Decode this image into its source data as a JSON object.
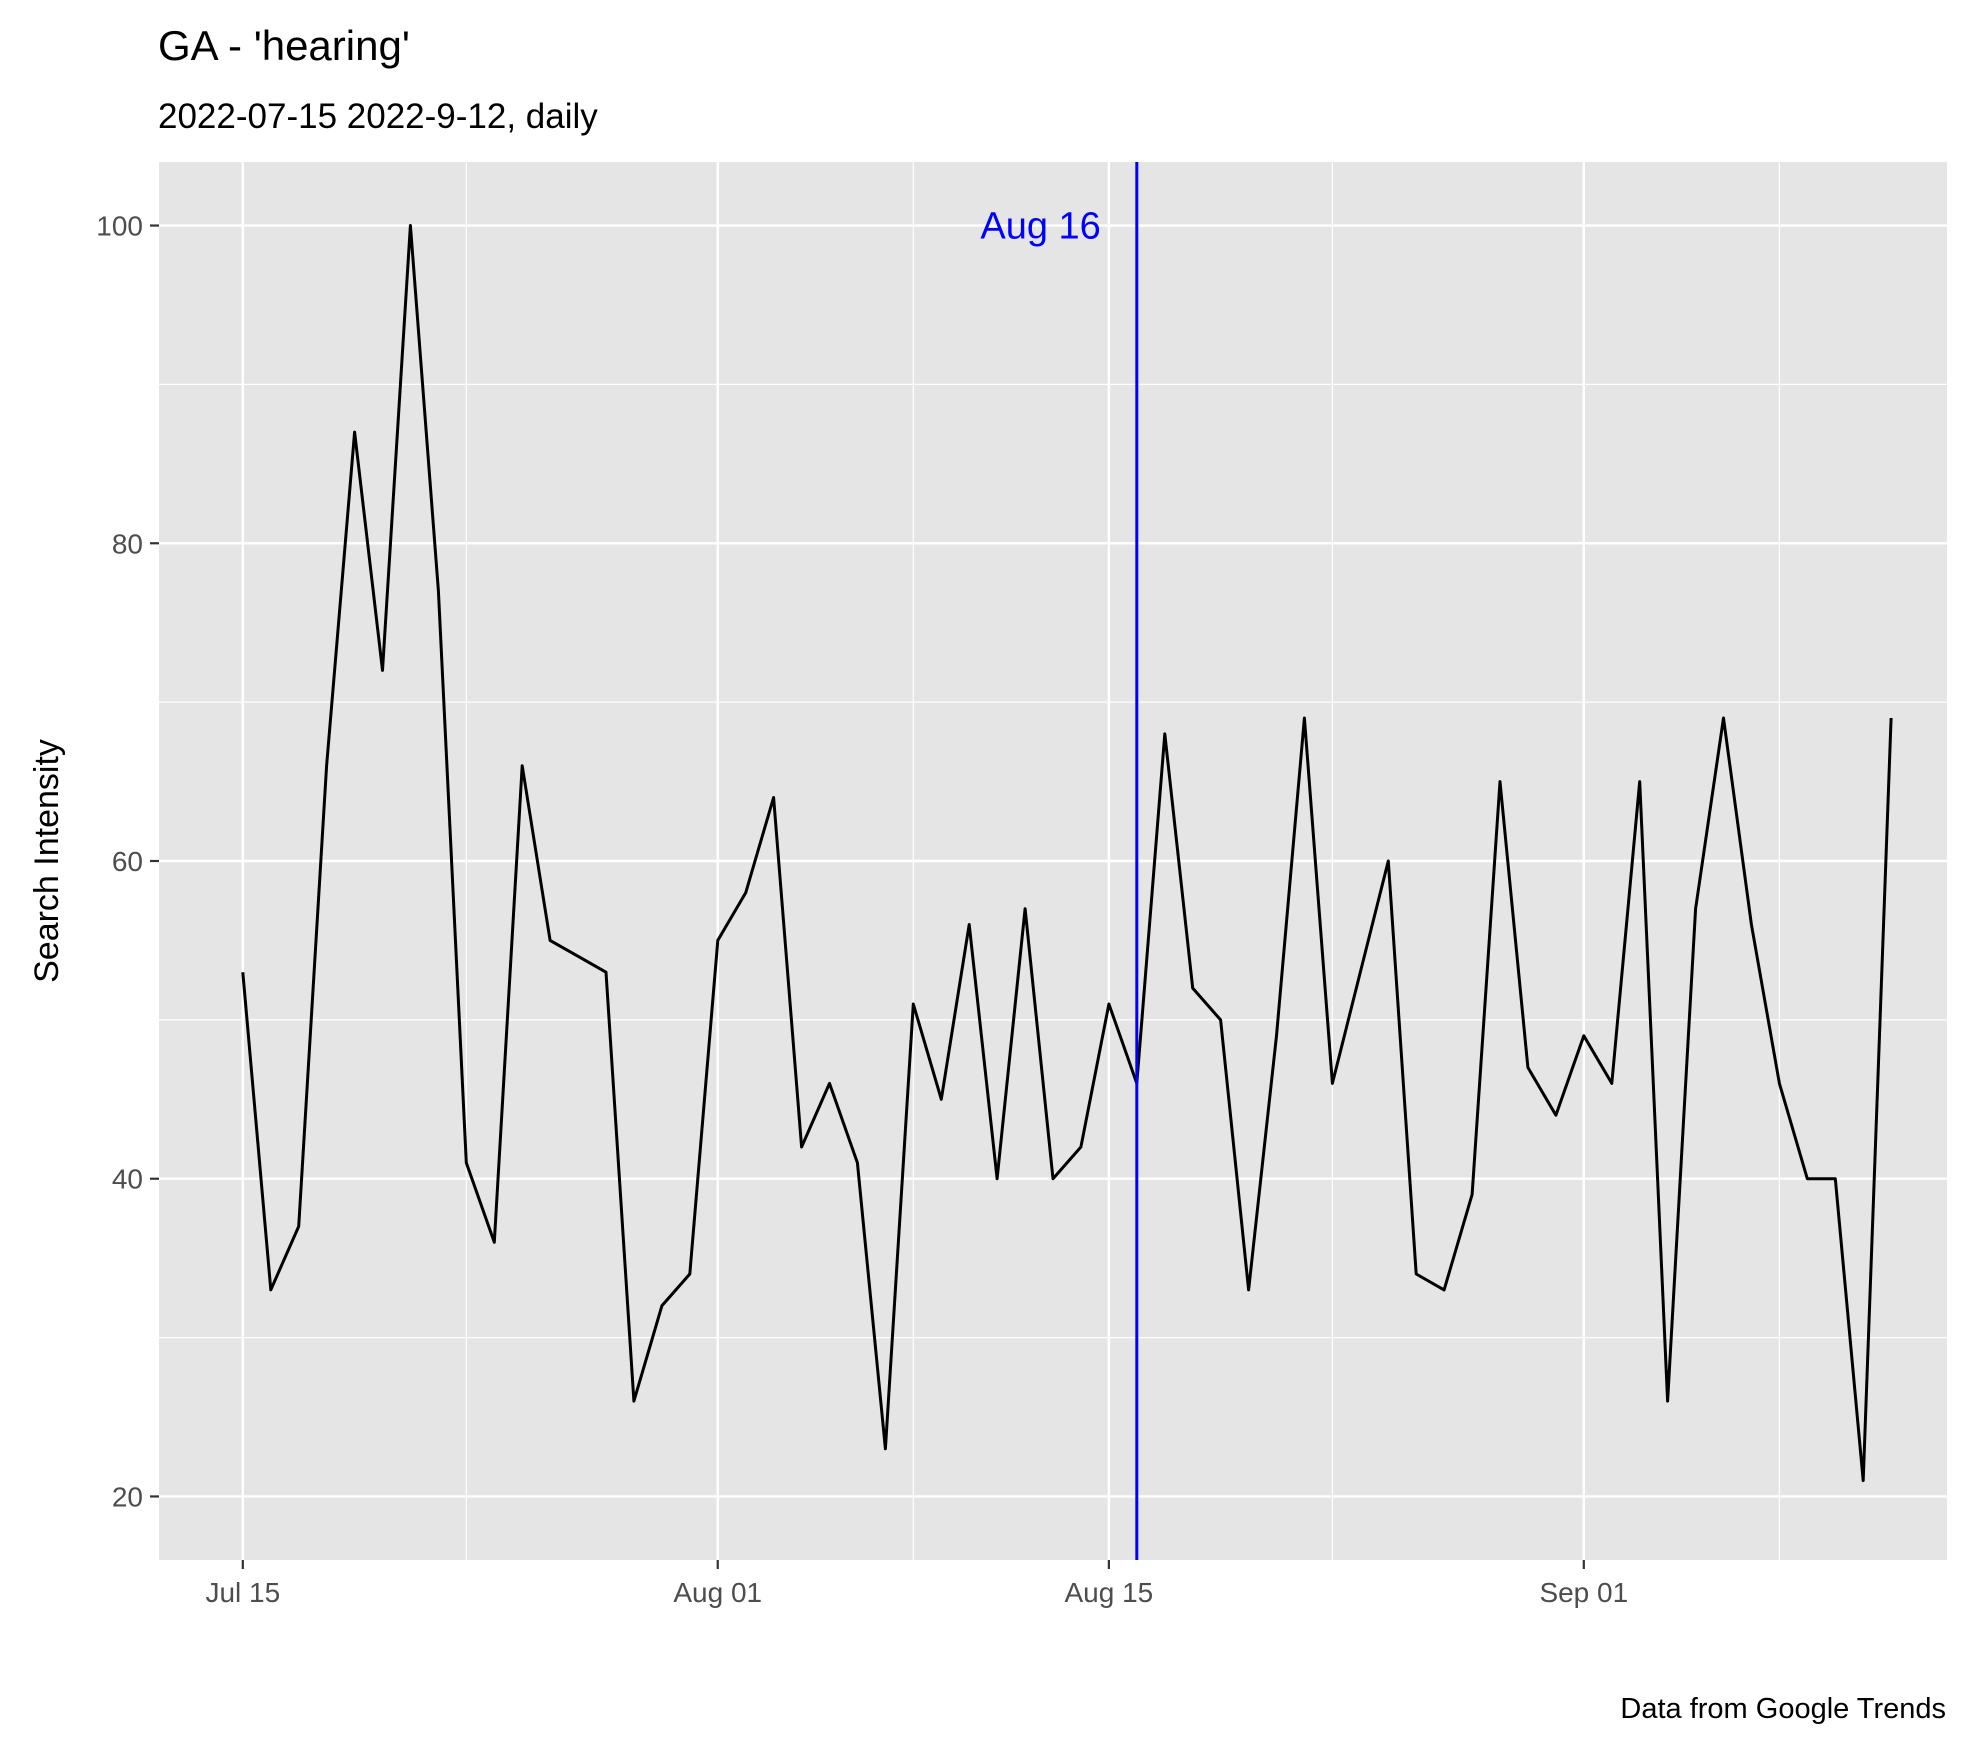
{
  "chart_data": {
    "type": "line",
    "title": "GA  - 'hearing'",
    "subtitle": "2022-07-15 2022-9-12, daily",
    "xlabel": "",
    "ylabel": "Search Intensity",
    "caption": "Data from Google Trends",
    "x_start": "2022-07-15",
    "x_end": "2022-09-12",
    "xlim": [
      "2022-07-12",
      "2022-09-14"
    ],
    "ylim": [
      16,
      104
    ],
    "x_ticks": [
      {
        "date": "2022-07-15",
        "label": "Jul 15"
      },
      {
        "date": "2022-08-01",
        "label": "Aug 01"
      },
      {
        "date": "2022-08-15",
        "label": "Aug 15"
      },
      {
        "date": "2022-09-01",
        "label": "Sep 01"
      }
    ],
    "x_minor": [
      "2022-07-23",
      "2022-08-08",
      "2022-08-23",
      "2022-09-08"
    ],
    "y_ticks": [
      20,
      40,
      60,
      80,
      100
    ],
    "y_minor": [
      30,
      50,
      70,
      90
    ],
    "grid": true,
    "series": [
      {
        "color": "#000000",
        "x": [
          "2022-07-15",
          "2022-07-16",
          "2022-07-17",
          "2022-07-18",
          "2022-07-19",
          "2022-07-20",
          "2022-07-21",
          "2022-07-22",
          "2022-07-23",
          "2022-07-24",
          "2022-07-25",
          "2022-07-26",
          "2022-07-27",
          "2022-07-28",
          "2022-07-29",
          "2022-07-30",
          "2022-07-31",
          "2022-08-01",
          "2022-08-02",
          "2022-08-03",
          "2022-08-04",
          "2022-08-05",
          "2022-08-06",
          "2022-08-07",
          "2022-08-08",
          "2022-08-09",
          "2022-08-10",
          "2022-08-11",
          "2022-08-12",
          "2022-08-13",
          "2022-08-14",
          "2022-08-15",
          "2022-08-16",
          "2022-08-17",
          "2022-08-18",
          "2022-08-19",
          "2022-08-20",
          "2022-08-21",
          "2022-08-22",
          "2022-08-23",
          "2022-08-24",
          "2022-08-25",
          "2022-08-26",
          "2022-08-27",
          "2022-08-28",
          "2022-08-29",
          "2022-08-30",
          "2022-08-31",
          "2022-09-01",
          "2022-09-02",
          "2022-09-03",
          "2022-09-04",
          "2022-09-05",
          "2022-09-06",
          "2022-09-07",
          "2022-09-08",
          "2022-09-09",
          "2022-09-10",
          "2022-09-11",
          "2022-09-12"
        ],
        "y": [
          53,
          33,
          37,
          66,
          87,
          72,
          100,
          77,
          41,
          36,
          66,
          55,
          54,
          53,
          26,
          32,
          34,
          55,
          58,
          64,
          42,
          46,
          41,
          23,
          51,
          45,
          56,
          40,
          57,
          40,
          42,
          51,
          46,
          68,
          52,
          50,
          33,
          49,
          69,
          46,
          53,
          60,
          34,
          33,
          39,
          65,
          47,
          44,
          49,
          46,
          65,
          26,
          57,
          69,
          56,
          46,
          40,
          40,
          21,
          69
        ]
      }
    ],
    "annotation": {
      "date": "2022-08-16",
      "label": "Aug 16",
      "color": "#0000ff"
    }
  }
}
